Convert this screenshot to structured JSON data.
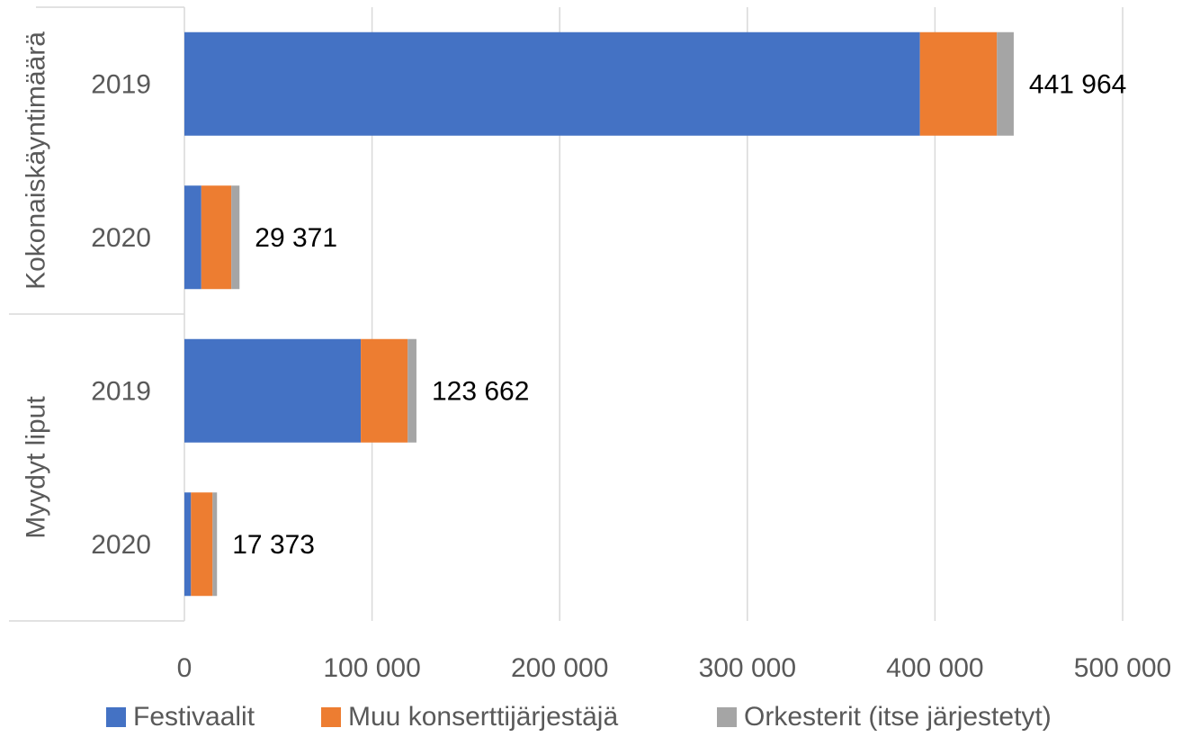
{
  "chart_data": {
    "type": "bar",
    "orientation": "horizontal",
    "stacked": true,
    "groups": [
      {
        "label": "Kokonaiskäyntimäärä",
        "categories": [
          "2019",
          "2020"
        ]
      },
      {
        "label": "Myydyt liput",
        "categories": [
          "2019",
          "2020"
        ]
      }
    ],
    "rows": [
      {
        "group": "Kokonaiskäyntimäärä",
        "category": "2019",
        "total_label": "441 964"
      },
      {
        "group": "Kokonaiskäyntimäärä",
        "category": "2020",
        "total_label": "29 371"
      },
      {
        "group": "Myydyt liput",
        "category": "2019",
        "total_label": "123 662"
      },
      {
        "group": "Myydyt liput",
        "category": "2020",
        "total_label": "17 373"
      }
    ],
    "series": [
      {
        "name": "Festivaalit",
        "color": "#4472C4",
        "values": [
          392000,
          9000,
          94000,
          3500
        ]
      },
      {
        "name": "Muu konserttijärjestäjä",
        "color": "#ED7D31",
        "values": [
          41000,
          16000,
          25000,
          11500
        ]
      },
      {
        "name": "Orkesterit (itse järjestetyt)",
        "color": "#A5A5A5",
        "values": [
          8964,
          4371,
          4662,
          2373
        ]
      }
    ],
    "xlim": [
      0,
      500000
    ],
    "xticks": [
      0,
      100000,
      200000,
      300000,
      400000,
      500000
    ],
    "xtick_labels": [
      "0",
      "100 000",
      "200 000",
      "300 000",
      "400 000",
      "500 000"
    ],
    "grid": true,
    "legend_position": "bottom"
  }
}
